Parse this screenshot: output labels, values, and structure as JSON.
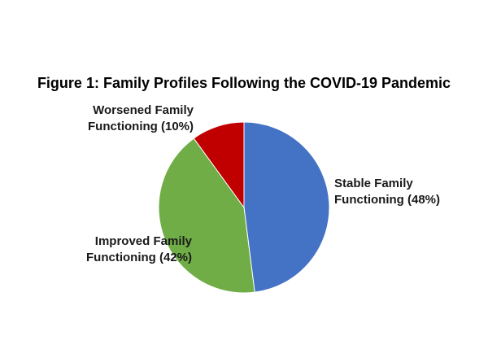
{
  "chart_data": {
    "type": "pie",
    "title": "Figure 1: Family Profiles Following the COVID-19 Pandemic",
    "slices": [
      {
        "label_line1": "Stable Family",
        "label_line2": "Functioning (48%)",
        "category": "Stable Family Functioning",
        "value": 48,
        "color": "#4472C4"
      },
      {
        "label_line1": "Improved Family",
        "label_line2": "Functioning (42%)",
        "category": "Improved Family Functioning",
        "value": 42,
        "color": "#70AD47"
      },
      {
        "label_line1": "Worsened Family",
        "label_line2": "Functioning (10%)",
        "category": "Worsened Family Functioning",
        "value": 10,
        "color": "#C00000"
      }
    ]
  }
}
